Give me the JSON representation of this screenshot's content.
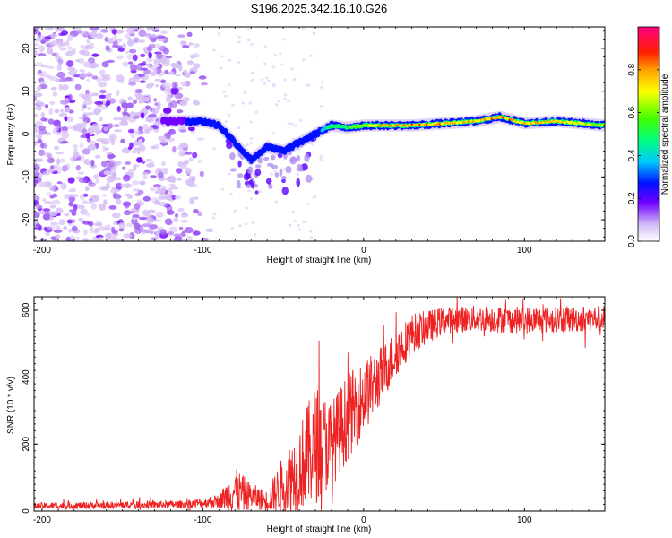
{
  "title": "S196.2025.342.16.10.G26",
  "chart_data": [
    {
      "type": "heatmap",
      "xlabel": "Height of straight line (km)",
      "ylabel": "Frequency (Hz)",
      "xlim": [
        -205,
        150
      ],
      "ylim": [
        -25,
        25
      ],
      "xticks": [
        -200,
        -100,
        0,
        100
      ],
      "xtick_labels": [
        "-200",
        "-100",
        "0",
        "100"
      ],
      "yticks": [
        -20,
        -10,
        0,
        10,
        20
      ],
      "ytick_labels": [
        "-20",
        "-10",
        "0",
        "10",
        "20"
      ],
      "colorbar": {
        "label": "Normalized spectral amplitude",
        "range": [
          0,
          1
        ],
        "ticks": [
          0,
          0.2,
          0.4,
          0.6,
          0.8
        ],
        "tick_labels": [
          "0.0",
          "0.2",
          "0.4",
          "0.6",
          "0.8"
        ],
        "colormap": [
          "#e8e0f8",
          "#7000ff",
          "#0000ff",
          "#00c8ff",
          "#00ff40",
          "#a0ff00",
          "#ffff00",
          "#ffa000",
          "#ff2000",
          "#ff0080"
        ]
      },
      "ridge": {
        "x": [
          -125,
          -110,
          -100,
          -90,
          -80,
          -70,
          -60,
          -50,
          -40,
          -30,
          -20,
          -10,
          0,
          10,
          30,
          50,
          70,
          85,
          100,
          120,
          150
        ],
        "freq_hz": [
          3,
          3,
          3,
          2,
          -2,
          -6,
          -3,
          -4,
          -2,
          0,
          2,
          1.5,
          2,
          2,
          2,
          2.5,
          3,
          4,
          2.5,
          3,
          2
        ],
        "amplitude": [
          0.2,
          0.3,
          0.35,
          0.3,
          0.35,
          0.3,
          0.4,
          0.3,
          0.35,
          0.35,
          0.6,
          0.6,
          0.75,
          0.85,
          0.9,
          0.9,
          0.85,
          0.95,
          0.85,
          0.85,
          0.75
        ]
      },
      "noise_region": {
        "x_range": [
          -205,
          -95
        ],
        "freq_range": [
          -25,
          25
        ],
        "amplitude": 0.05
      }
    },
    {
      "type": "line",
      "xlabel": "Height of straight line (km)",
      "ylabel": "SNR (10 * v/v)",
      "xlim": [
        -205,
        150
      ],
      "ylim": [
        0,
        640
      ],
      "xticks": [
        -200,
        -100,
        0,
        100
      ],
      "xtick_labels": [
        "-200",
        "-100",
        "0",
        "100"
      ],
      "yticks": [
        0,
        200,
        400,
        600
      ],
      "ytick_labels": [
        "0",
        "200",
        "400",
        "600"
      ],
      "color": "#ee2222",
      "envelope": {
        "x": [
          -205,
          -110,
          -90,
          -80,
          -70,
          -60,
          -50,
          -40,
          -30,
          -20,
          -10,
          0,
          10,
          20,
          30,
          50,
          70,
          100,
          150
        ],
        "mean": [
          15,
          20,
          30,
          60,
          45,
          30,
          80,
          130,
          200,
          200,
          280,
          340,
          400,
          470,
          530,
          570,
          575,
          570,
          575
        ],
        "spread": [
          10,
          12,
          20,
          70,
          40,
          30,
          90,
          130,
          180,
          130,
          130,
          110,
          90,
          70,
          60,
          40,
          40,
          40,
          40
        ]
      }
    }
  ]
}
